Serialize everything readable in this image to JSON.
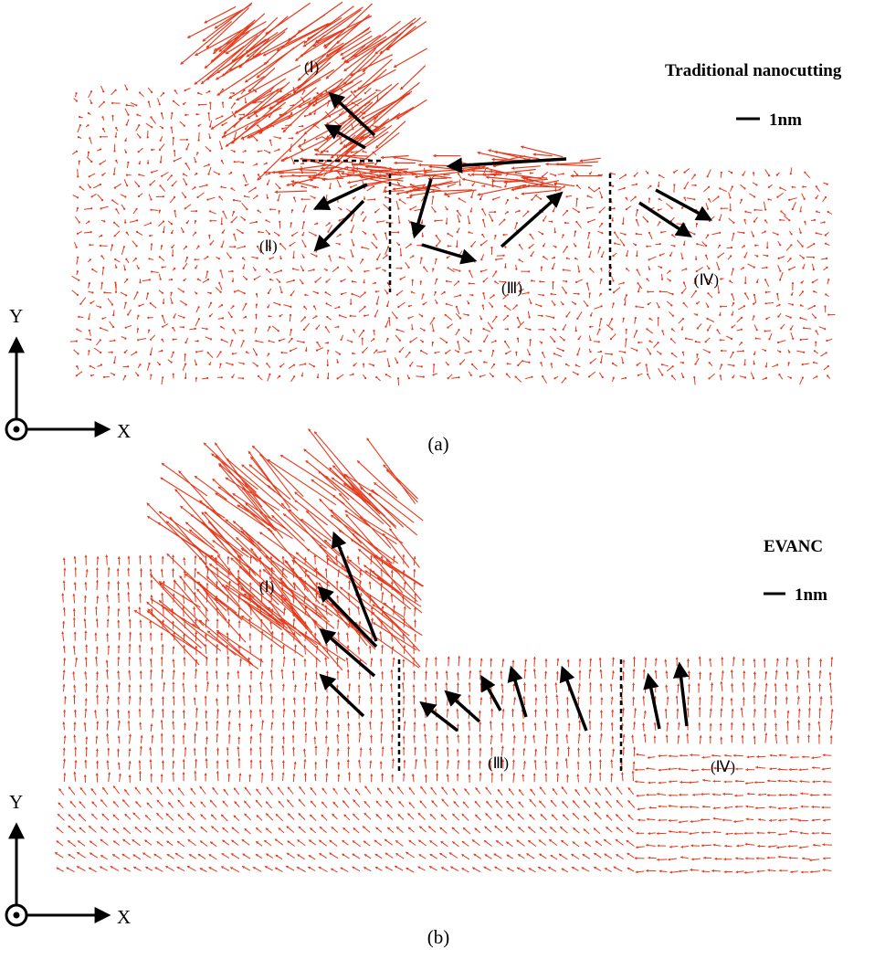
{
  "colors": {
    "atom_vector": "#e63a1c",
    "flow_arrow": "#000000",
    "background": "#ffffff"
  },
  "panels": [
    {
      "caption": "(a)",
      "title": "Traditional nanocutting",
      "scale_label": "1nm",
      "regions": [
        "(Ⅰ)",
        "(Ⅱ)",
        "(Ⅲ)",
        "(Ⅳ)"
      ],
      "axis": {
        "y_label": "Y",
        "x_label": "X"
      },
      "flow_pattern": "disordered"
    },
    {
      "caption": "(b)",
      "title": "EVANC",
      "scale_label": "1nm",
      "regions": [
        "(Ⅰ)",
        "(Ⅲ)",
        "(Ⅳ)"
      ],
      "axis": {
        "y_label": "Y",
        "x_label": "X"
      },
      "flow_pattern": "upward"
    }
  ]
}
